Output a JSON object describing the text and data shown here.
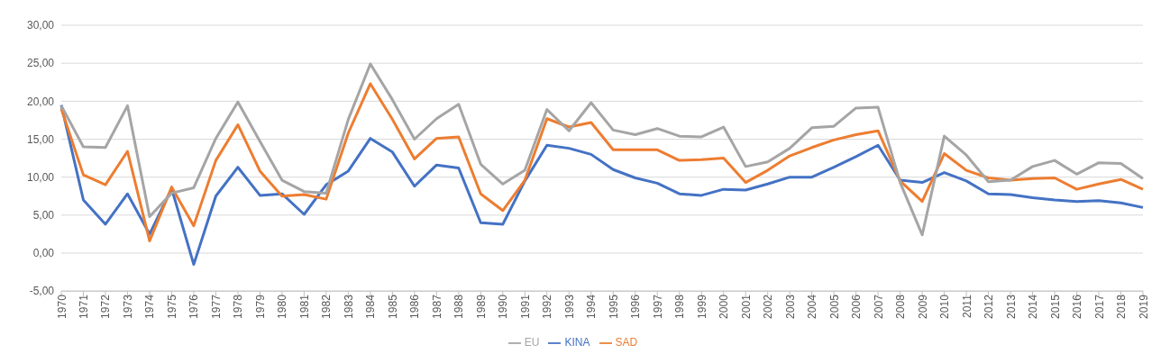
{
  "chart_data": {
    "type": "line",
    "categories": [
      "1970",
      "1971",
      "1972",
      "1973",
      "1974",
      "1975",
      "1976",
      "1977",
      "1978",
      "1979",
      "1980",
      "1981",
      "1982",
      "1983",
      "1984",
      "1985",
      "1986",
      "1987",
      "1988",
      "1989",
      "1990",
      "1991",
      "1992",
      "1993",
      "1994",
      "1995",
      "1996",
      "1997",
      "1998",
      "1999",
      "2000",
      "2001",
      "2002",
      "2003",
      "2004",
      "2005",
      "2006",
      "2007",
      "2008",
      "2009",
      "2010",
      "2011",
      "2012",
      "2013",
      "2014",
      "2015",
      "2016",
      "2017",
      "2018",
      "2019"
    ],
    "series": [
      {
        "name": "KINA",
        "color": "#4472c4",
        "values": [
          19.5,
          7.0,
          3.8,
          7.8,
          2.5,
          8.5,
          -1.5,
          7.5,
          11.3,
          7.6,
          7.8,
          5.1,
          9.0,
          10.8,
          15.1,
          13.3,
          8.8,
          11.6,
          11.2,
          4.0,
          3.8,
          9.5,
          14.2,
          13.8,
          13.0,
          11.0,
          9.9,
          9.2,
          7.8,
          7.6,
          8.4,
          8.3,
          9.1,
          10.0,
          10.0,
          11.3,
          12.7,
          14.2,
          9.6,
          9.3,
          10.6,
          9.5,
          7.8,
          7.7,
          7.3,
          7.0,
          6.8,
          6.9,
          6.6,
          6.0
        ]
      },
      {
        "name": "SAD",
        "color": "#ed7d31",
        "values": [
          19.0,
          10.3,
          9.0,
          13.4,
          1.6,
          8.7,
          3.6,
          12.2,
          16.9,
          10.8,
          7.5,
          7.7,
          7.1,
          15.8,
          22.3,
          17.6,
          12.4,
          15.1,
          15.3,
          7.8,
          5.6,
          9.6,
          17.7,
          16.6,
          17.2,
          13.6,
          13.6,
          13.6,
          12.2,
          12.3,
          12.5,
          9.3,
          10.9,
          12.8,
          13.9,
          14.9,
          15.6,
          16.1,
          9.5,
          6.8,
          13.1,
          10.9,
          9.9,
          9.6,
          9.8,
          9.9,
          8.4,
          9.1,
          9.7,
          8.4
        ]
      },
      {
        "name": "EU",
        "color": "#a5a5a5",
        "values": [
          19.4,
          14.0,
          13.9,
          19.4,
          4.8,
          7.9,
          8.6,
          15.1,
          19.9,
          14.7,
          9.6,
          8.1,
          7.9,
          17.6,
          24.9,
          20.2,
          15.0,
          17.7,
          19.6,
          11.7,
          9.1,
          10.9,
          18.9,
          16.1,
          19.8,
          16.2,
          15.6,
          16.4,
          15.4,
          15.3,
          16.6,
          11.4,
          12.0,
          13.8,
          16.5,
          16.7,
          19.1,
          19.2,
          9.3,
          2.4,
          15.4,
          12.9,
          9.4,
          9.6,
          11.4,
          12.2,
          10.4,
          11.9,
          11.8,
          9.8
        ]
      }
    ],
    "ylim": [
      -5,
      30
    ],
    "yticks": [
      {
        "value": -5,
        "label": "-5,00"
      },
      {
        "value": 0,
        "label": "0,00"
      },
      {
        "value": 5,
        "label": "5,00"
      },
      {
        "value": 10,
        "label": "10,00"
      },
      {
        "value": 15,
        "label": "15,00"
      },
      {
        "value": 20,
        "label": "20,00"
      },
      {
        "value": 25,
        "label": "25,00"
      },
      {
        "value": 30,
        "label": "30,00"
      }
    ],
    "grid": "y",
    "legend": "bottom",
    "marker": "none",
    "line_style": "solid"
  }
}
